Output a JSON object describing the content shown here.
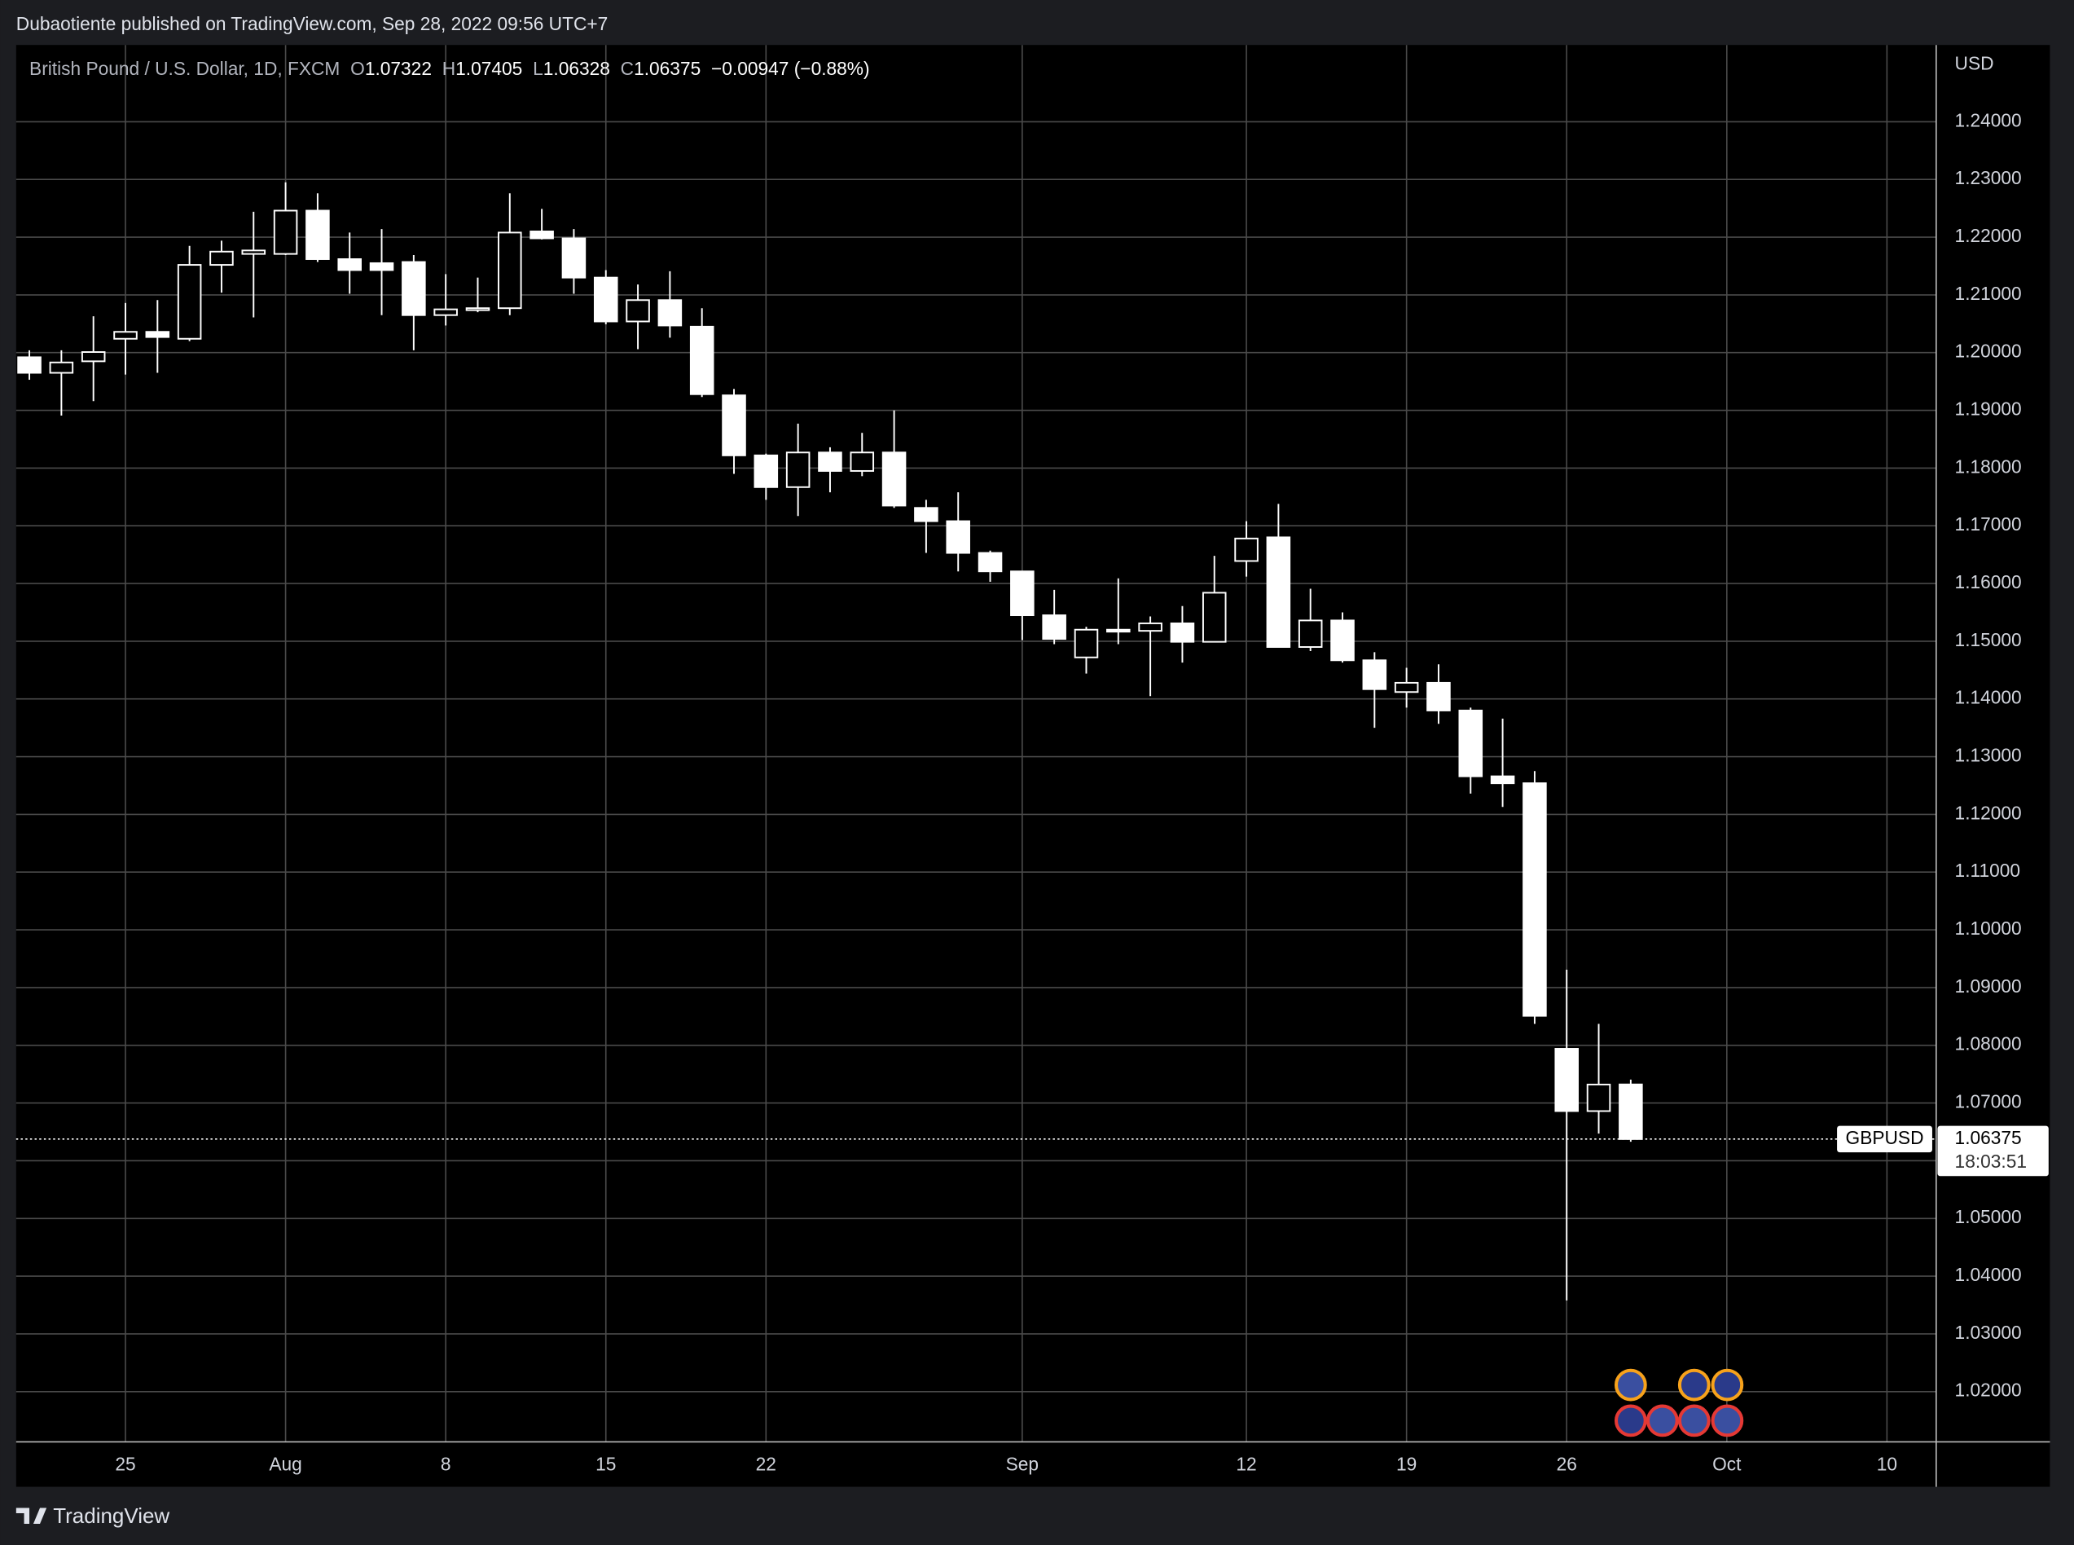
{
  "header": {
    "publisher": "Dubaotiente published on TradingView.com, Sep 28, 2022 09:56 UTC+7",
    "brand": "TradingView"
  },
  "chart_data": {
    "type": "candlestick",
    "instrument": "British Pound / U.S. Dollar, 1D, FXCM",
    "ohlc_labels": [
      "O",
      "H",
      "L",
      "C"
    ],
    "change": "−0.00947 (−0.88%)",
    "currency": "USD",
    "countdown": "18:03:51",
    "x": [
      "2022-07-20",
      "2022-07-21",
      "2022-07-22",
      "2022-07-25",
      "2022-07-26",
      "2022-07-27",
      "2022-07-28",
      "2022-07-29",
      "2022-08-01",
      "2022-08-02",
      "2022-08-03",
      "2022-08-04",
      "2022-08-05",
      "2022-08-08",
      "2022-08-09",
      "2022-08-10",
      "2022-08-11",
      "2022-08-12",
      "2022-08-15",
      "2022-08-16",
      "2022-08-17",
      "2022-08-18",
      "2022-08-19",
      "2022-08-22",
      "2022-08-23",
      "2022-08-24",
      "2022-08-25",
      "2022-08-26",
      "2022-08-29",
      "2022-08-30",
      "2022-08-31",
      "2022-09-01",
      "2022-09-02",
      "2022-09-05",
      "2022-09-06",
      "2022-09-07",
      "2022-09-08",
      "2022-09-09",
      "2022-09-12",
      "2022-09-13",
      "2022-09-14",
      "2022-09-15",
      "2022-09-16",
      "2022-09-19",
      "2022-09-20",
      "2022-09-21",
      "2022-09-22",
      "2022-09-23",
      "2022-09-26",
      "2022-09-27",
      "2022-09-28"
    ],
    "series": [
      {
        "name": "GBPUSD",
        "color": "#ffffff",
        "open": [
          1.1992,
          1.1965,
          1.1985,
          1.2024,
          1.2036,
          1.2024,
          1.2152,
          1.2171,
          1.2171,
          1.2246,
          1.2162,
          1.2155,
          1.2157,
          1.2065,
          1.2075,
          1.2077,
          1.221,
          1.2198,
          1.213,
          1.2054,
          1.2091,
          1.2045,
          1.1926,
          1.1822,
          1.1767,
          1.1827,
          1.1795,
          1.1827,
          1.1731,
          1.1708,
          1.1653,
          1.1621,
          1.1545,
          1.1472,
          1.152,
          1.1518,
          1.1531,
          1.1499,
          1.1639,
          1.168,
          1.149,
          1.1536,
          1.1467,
          1.1412,
          1.1428,
          1.138,
          1.1266,
          1.1254,
          1.0794,
          1.0686,
          1.07322
        ],
        "high": [
          1.2004,
          1.2004,
          1.2063,
          1.2086,
          1.2091,
          1.2185,
          1.2194,
          1.2244,
          1.2295,
          1.2276,
          1.2208,
          1.2214,
          1.2169,
          1.2136,
          1.213,
          1.2276,
          1.2249,
          1.2214,
          1.2143,
          1.2118,
          1.2141,
          1.2077,
          1.1937,
          1.1825,
          1.1877,
          1.1836,
          1.1861,
          1.19,
          1.1745,
          1.1758,
          1.1657,
          1.1621,
          1.1589,
          1.1525,
          1.1609,
          1.1543,
          1.1561,
          1.1648,
          1.1708,
          1.1738,
          1.1591,
          1.155,
          1.1481,
          1.1454,
          1.146,
          1.1385,
          1.1366,
          1.1275,
          1.0931,
          1.0837,
          1.07405
        ],
        "low": [
          1.1953,
          1.1891,
          1.1916,
          1.1962,
          1.1965,
          1.202,
          1.2104,
          1.2061,
          1.2169,
          1.2157,
          1.2102,
          1.2065,
          1.2004,
          1.2047,
          1.207,
          1.2065,
          1.2196,
          1.2102,
          1.2049,
          1.2006,
          1.2026,
          1.1923,
          1.179,
          1.1745,
          1.1717,
          1.1758,
          1.1786,
          1.1731,
          1.1653,
          1.1621,
          1.1603,
          1.1502,
          1.1495,
          1.1444,
          1.1495,
          1.1405,
          1.1463,
          1.1499,
          1.1612,
          1.149,
          1.1483,
          1.1463,
          1.135,
          1.1385,
          1.1357,
          1.1236,
          1.1213,
          1.0837,
          1.0358,
          1.0647,
          1.06328
        ],
        "close": [
          1.1965,
          1.1983,
          1.2001,
          1.2036,
          1.2027,
          1.2152,
          1.2175,
          1.2177,
          1.2246,
          1.2162,
          1.2143,
          1.2143,
          1.2065,
          1.2075,
          1.2077,
          1.2208,
          1.2198,
          1.213,
          1.2054,
          1.2091,
          1.2047,
          1.1928,
          1.1822,
          1.1767,
          1.1827,
          1.1795,
          1.1827,
          1.1735,
          1.1708,
          1.1653,
          1.1621,
          1.1545,
          1.1504,
          1.152,
          1.1518,
          1.1531,
          1.1499,
          1.1584,
          1.1678,
          1.149,
          1.1536,
          1.1467,
          1.1417,
          1.1428,
          1.138,
          1.1266,
          1.1254,
          1.0851,
          1.0686,
          1.0732,
          1.06375
        ]
      }
    ],
    "ylim": [
      1.0113,
      1.2533
    ],
    "yticks": [
      {
        "value": 1.24,
        "label": "1.24000"
      },
      {
        "value": 1.23,
        "label": "1.23000"
      },
      {
        "value": 1.22,
        "label": "1.22000"
      },
      {
        "value": 1.21,
        "label": "1.21000"
      },
      {
        "value": 1.2,
        "label": "1.20000"
      },
      {
        "value": 1.19,
        "label": "1.19000"
      },
      {
        "value": 1.18,
        "label": "1.18000"
      },
      {
        "value": 1.17,
        "label": "1.17000"
      },
      {
        "value": 1.16,
        "label": "1.16000"
      },
      {
        "value": 1.15,
        "label": "1.15000"
      },
      {
        "value": 1.14,
        "label": "1.14000"
      },
      {
        "value": 1.13,
        "label": "1.13000"
      },
      {
        "value": 1.12,
        "label": "1.12000"
      },
      {
        "value": 1.11,
        "label": "1.11000"
      },
      {
        "value": 1.1,
        "label": "1.10000"
      },
      {
        "value": 1.09,
        "label": "1.09000"
      },
      {
        "value": 1.08,
        "label": "1.08000"
      },
      {
        "value": 1.07,
        "label": "1.07000"
      },
      {
        "value": 1.06,
        "label": "1.06000"
      },
      {
        "value": 1.05,
        "label": "1.05000"
      },
      {
        "value": 1.04,
        "label": "1.04000"
      },
      {
        "value": 1.03,
        "label": "1.03000"
      },
      {
        "value": 1.02,
        "label": "1.02000"
      }
    ],
    "xticks": [
      {
        "value": "2022-07-25",
        "label": "25"
      },
      {
        "value": "2022-08-01",
        "label": "Aug"
      },
      {
        "value": "2022-08-08",
        "label": "8"
      },
      {
        "value": "2022-08-15",
        "label": "15"
      },
      {
        "value": "2022-08-22",
        "label": "22"
      },
      {
        "value": "2022-09-01",
        "label": "Sep"
      },
      {
        "value": "2022-09-12",
        "label": "12"
      },
      {
        "value": "2022-09-19",
        "label": "19"
      },
      {
        "value": "2022-09-26",
        "label": "26"
      },
      {
        "value": "2022-10-03",
        "label": "Oct"
      },
      {
        "value": "2022-10-10",
        "label": "10"
      }
    ],
    "grid": true
  }
}
